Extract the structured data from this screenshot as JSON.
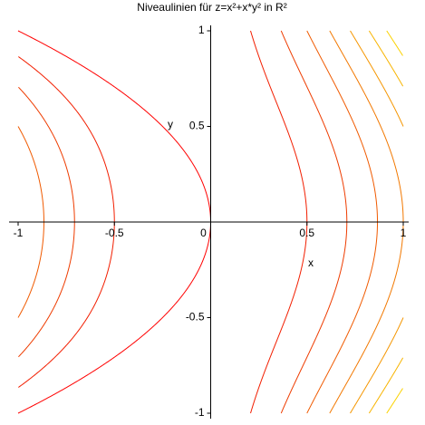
{
  "chart_data": {
    "type": "contour",
    "title": "Niveaulinien für z=x²+x*y² in R²",
    "x_label": "x",
    "y_label": "y",
    "levels": [
      0,
      0.25,
      0.5,
      0.75,
      1,
      1.25,
      1.5,
      1.75,
      2
    ],
    "colors": [
      "#ff0000",
      "#f21e00",
      "#ee3c00",
      "#f05a00",
      "#f27800",
      "#f59600",
      "#f8b400",
      "#fbd200",
      "#ffe600"
    ],
    "xlim": [
      -1,
      1
    ],
    "ylim": [
      -1,
      1
    ],
    "xticks": [
      -1,
      -0.5,
      0,
      0.5,
      1
    ],
    "yticks": [
      -1,
      -0.5,
      0.5,
      1
    ]
  }
}
